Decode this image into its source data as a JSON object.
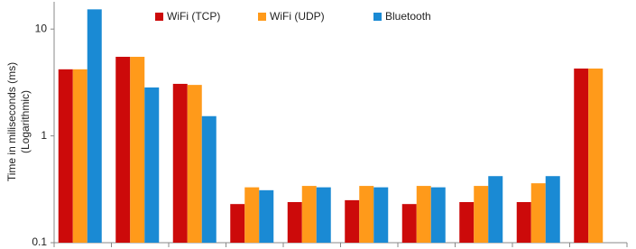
{
  "chart_data": {
    "type": "bar",
    "ylabel": [
      "Time in miliseconds (ms)",
      "(Logarithmic)"
    ],
    "categories": [
      null,
      null,
      null,
      null,
      null,
      null,
      null,
      null,
      null,
      null
    ],
    "series": [
      {
        "name": "WiFi (TCP)",
        "color": "#cc0a0a",
        "values": [
          4.2,
          5.5,
          3.07,
          0.23,
          0.24,
          0.25,
          0.23,
          0.24,
          0.24,
          4.27
        ]
      },
      {
        "name": "WiFi (UDP)",
        "color": "#ff9a1a",
        "values": [
          4.2,
          5.5,
          3.0,
          0.33,
          0.34,
          0.34,
          0.34,
          0.34,
          0.36,
          4.27
        ]
      },
      {
        "name": "Bluetooth",
        "color": "#1a8ad4",
        "values": [
          15.3,
          2.84,
          1.53,
          0.31,
          0.33,
          0.33,
          0.33,
          0.42,
          0.42,
          null
        ]
      }
    ],
    "ylim": [
      0.1,
      18
    ],
    "yticks": [
      0.1,
      1,
      10
    ],
    "log_y": true,
    "grid": false,
    "legend": "top"
  }
}
